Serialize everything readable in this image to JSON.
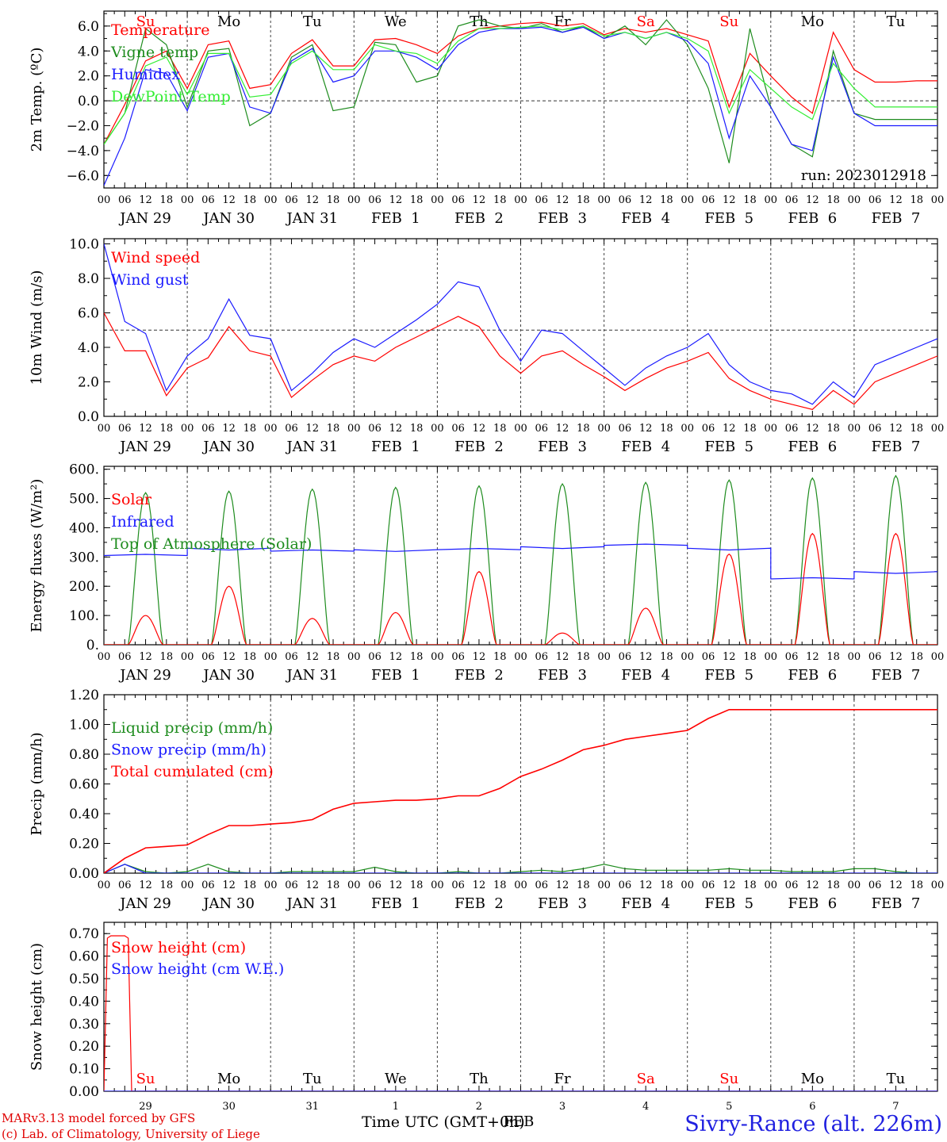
{
  "footer": {
    "model_line1": "MARv3.13 model forced by GFS",
    "model_line2": "(c) Lab. of Climatology, University of Liege",
    "xaxis_title": "Time UTC (GMT+0h)",
    "station": "Sivry-Rance (alt. 226m)",
    "month_label": "FEB"
  },
  "colors": {
    "red": "#ff0000",
    "blue": "#1a1aff",
    "green": "#1e8c1e",
    "light_green": "#33ee33"
  },
  "time_axis": {
    "hour_ticks": [
      "00",
      "06",
      "12",
      "18"
    ],
    "day_labels": [
      "JAN 29",
      "JAN 30",
      "JAN 31",
      "FEB  1",
      "FEB  2",
      "FEB  3",
      "FEB  4",
      "FEB  5",
      "FEB  6",
      "FEB  7"
    ],
    "weekdays": [
      "Su",
      "Mo",
      "Tu",
      "We",
      "Th",
      "Fr",
      "Sa",
      "Su",
      "Mo",
      "Tu"
    ],
    "weekday_red": [
      true,
      false,
      false,
      false,
      false,
      false,
      true,
      true,
      false,
      false
    ],
    "day_numbers": [
      "29",
      "30",
      "31",
      "1",
      "2",
      "3",
      "4",
      "5",
      "6",
      "7"
    ]
  },
  "chart_data": [
    {
      "type": "line",
      "ylabel": "2m Temp. (ºC)",
      "ylim": [
        -7,
        7.2
      ],
      "yticks": [
        "6.0",
        "4.0",
        "2.0",
        "0.0",
        "−2.0",
        "−4.0",
        "−6.0"
      ],
      "ytick_values": [
        6,
        4,
        2,
        0,
        -2,
        -4,
        -6
      ],
      "reference_line": 0,
      "annotation": "run: 2023012918",
      "x_hours": [
        0,
        6,
        12,
        18,
        24,
        30,
        36,
        42,
        48,
        54,
        60,
        66,
        72,
        78,
        84,
        90,
        96,
        102,
        108,
        114,
        120,
        126,
        132,
        138,
        144,
        150,
        156,
        162,
        168,
        174,
        180,
        186,
        192,
        198,
        204,
        210,
        216,
        222,
        228,
        234,
        240
      ],
      "series": [
        {
          "name": "Temperature",
          "color": "red",
          "values": [
            -3.5,
            -0.3,
            3.2,
            4.0,
            1.0,
            4.5,
            4.8,
            1.0,
            1.3,
            3.8,
            4.9,
            2.8,
            2.8,
            4.9,
            5.0,
            4.5,
            3.8,
            5.2,
            5.8,
            6.0,
            6.2,
            6.3,
            6.0,
            6.2,
            5.3,
            5.8,
            5.5,
            5.8,
            5.3,
            4.8,
            -0.5,
            3.8,
            2.0,
            0.3,
            -1.0,
            5.5,
            2.5,
            1.5,
            1.5,
            1.6,
            1.6
          ]
        },
        {
          "name": "Vigne temp",
          "color": "green",
          "values": [
            -3.5,
            -1.0,
            5.8,
            4.5,
            -0.5,
            4.0,
            4.2,
            -2.0,
            -1.0,
            3.5,
            4.5,
            -0.8,
            -0.5,
            4.7,
            4.5,
            1.5,
            2.0,
            6.0,
            6.5,
            6.0,
            5.8,
            6.2,
            5.5,
            6.0,
            5.0,
            6.0,
            4.5,
            6.5,
            4.5,
            1.0,
            -5.0,
            5.8,
            -0.5,
            -3.5,
            -4.5,
            4.0,
            -1.0,
            -1.5,
            -1.5,
            -1.5,
            -1.5
          ]
        },
        {
          "name": "Humidex",
          "color": "blue",
          "values": [
            -6.8,
            -3.0,
            2.5,
            2.2,
            -0.8,
            3.5,
            3.8,
            -0.5,
            -1.0,
            3.2,
            4.2,
            1.5,
            2.0,
            4.0,
            4.0,
            3.5,
            2.5,
            4.5,
            5.5,
            5.8,
            5.8,
            5.9,
            5.5,
            5.9,
            5.0,
            5.5,
            5.0,
            5.5,
            4.8,
            3.0,
            -3.0,
            2.0,
            -0.5,
            -3.5,
            -4.0,
            3.5,
            -1.0,
            -2.0,
            -2.0,
            -2.0,
            -2.0
          ]
        },
        {
          "name": "DewPoint Temp",
          "color": "light_green",
          "values": [
            -3.5,
            -1.0,
            2.8,
            3.5,
            0.5,
            3.8,
            3.8,
            0.3,
            0.5,
            3.0,
            4.0,
            2.5,
            2.5,
            4.5,
            4.0,
            3.8,
            3.0,
            4.8,
            5.8,
            5.8,
            5.9,
            6.0,
            5.7,
            6.0,
            5.2,
            5.5,
            5.0,
            5.5,
            5.0,
            4.0,
            -1.0,
            2.5,
            1.0,
            -0.5,
            -1.5,
            3.0,
            1.0,
            -0.5,
            -0.5,
            -0.5,
            -0.5
          ]
        }
      ]
    },
    {
      "type": "line",
      "ylabel": "10m Wind (m/s)",
      "ylim": [
        0,
        10.3
      ],
      "yticks": [
        "10.0",
        "8.0",
        "6.0",
        "4.0",
        "2.0",
        "0.0"
      ],
      "ytick_values": [
        10,
        8,
        6,
        4,
        2,
        0
      ],
      "reference_line": 5,
      "x_hours": [
        0,
        6,
        12,
        18,
        24,
        30,
        36,
        42,
        48,
        54,
        60,
        66,
        72,
        78,
        84,
        90,
        96,
        102,
        108,
        114,
        120,
        126,
        132,
        138,
        144,
        150,
        156,
        162,
        168,
        174,
        180,
        186,
        192,
        198,
        204,
        210,
        216,
        222,
        228,
        234,
        240
      ],
      "series": [
        {
          "name": "Wind speed",
          "color": "red",
          "values": [
            6.0,
            3.8,
            3.8,
            1.2,
            2.8,
            3.4,
            5.2,
            3.8,
            3.5,
            1.1,
            2.1,
            3.0,
            3.5,
            3.2,
            4.0,
            4.6,
            5.2,
            5.8,
            5.2,
            3.5,
            2.5,
            3.5,
            3.8,
            3.0,
            2.3,
            1.5,
            2.2,
            2.8,
            3.2,
            3.7,
            2.2,
            1.5,
            1.0,
            0.7,
            0.4,
            1.5,
            0.7,
            2.0,
            2.5,
            3.0,
            3.5
          ]
        },
        {
          "name": "Wind gust",
          "color": "blue",
          "values": [
            10.0,
            5.5,
            4.8,
            1.5,
            3.5,
            4.5,
            6.8,
            4.7,
            4.5,
            1.5,
            2.5,
            3.7,
            4.5,
            4.0,
            4.8,
            5.6,
            6.5,
            7.8,
            7.5,
            5.0,
            3.2,
            5.0,
            4.8,
            3.8,
            2.8,
            1.8,
            2.8,
            3.5,
            4.0,
            4.8,
            3.0,
            2.0,
            1.5,
            1.3,
            0.7,
            2.0,
            1.1,
            3.0,
            3.5,
            4.0,
            4.5
          ]
        }
      ]
    },
    {
      "type": "line",
      "ylabel": "Energy fluxes (W/m²)",
      "ylim": [
        0,
        610
      ],
      "yticks": [
        "600.",
        "500.",
        "400.",
        "300.",
        "200.",
        "100.",
        "0."
      ],
      "ytick_values": [
        600,
        500,
        400,
        300,
        200,
        100,
        0
      ],
      "series_info": [
        {
          "name": "Solar",
          "color": "red",
          "daily_peaks": [
            100,
            200,
            90,
            110,
            250,
            40,
            125,
            310,
            380,
            380
          ]
        },
        {
          "name": "Infrared",
          "color": "blue",
          "daily_levels": [
            305,
            330,
            320,
            325,
            325,
            335,
            340,
            330,
            225,
            250
          ]
        },
        {
          "name": "Top of Atmosphere (Solar)",
          "color": "green",
          "daily_peaks": [
            520,
            525,
            532,
            538,
            543,
            550,
            555,
            563,
            570,
            578
          ]
        }
      ]
    },
    {
      "type": "line",
      "ylabel": "Precip (mm/h)",
      "ylim": [
        0,
        1.2
      ],
      "yticks": [
        "1.20",
        "1.00",
        "0.80",
        "0.60",
        "0.40",
        "0.20",
        "0.00"
      ],
      "ytick_values": [
        1.2,
        1.0,
        0.8,
        0.6,
        0.4,
        0.2,
        0
      ],
      "x_hours": [
        0,
        6,
        12,
        18,
        24,
        30,
        36,
        42,
        48,
        54,
        60,
        66,
        72,
        78,
        84,
        90,
        96,
        102,
        108,
        114,
        120,
        126,
        132,
        138,
        144,
        150,
        156,
        162,
        168,
        174,
        180,
        186,
        192,
        198,
        204,
        210,
        216,
        222,
        228,
        234,
        240
      ],
      "series": [
        {
          "name": "Liquid precip (mm/h)",
          "color": "green",
          "values": [
            0,
            0.06,
            0.01,
            0,
            0.01,
            0.06,
            0.01,
            0,
            0,
            0.01,
            0.01,
            0.01,
            0.01,
            0.04,
            0.01,
            0,
            0,
            0.01,
            0,
            0,
            0.01,
            0.02,
            0.01,
            0.03,
            0.06,
            0.03,
            0.02,
            0.02,
            0.02,
            0.02,
            0.03,
            0.02,
            0.02,
            0.01,
            0.01,
            0.01,
            0.03,
            0.03,
            0.01,
            0,
            0
          ]
        },
        {
          "name": "Snow precip (mm/h)",
          "color": "blue",
          "values": [
            0,
            0.06,
            0,
            0,
            0,
            0,
            0,
            0,
            0,
            0,
            0,
            0,
            0,
            0,
            0,
            0,
            0,
            0,
            0,
            0,
            0,
            0,
            0,
            0,
            0,
            0,
            0,
            0,
            0,
            0,
            0,
            0,
            0,
            0,
            0,
            0,
            0,
            0,
            0,
            0,
            0
          ]
        },
        {
          "name": "Total cumulated (cm)",
          "color": "red",
          "values": [
            0,
            0.1,
            0.17,
            0.18,
            0.19,
            0.26,
            0.32,
            0.32,
            0.33,
            0.34,
            0.36,
            0.43,
            0.47,
            0.48,
            0.49,
            0.49,
            0.5,
            0.52,
            0.52,
            0.57,
            0.65,
            0.7,
            0.76,
            0.83,
            0.86,
            0.9,
            0.92,
            0.94,
            0.96,
            1.04,
            1.1,
            1.1,
            1.1,
            1.1,
            1.1,
            1.1,
            1.1,
            1.1,
            1.1,
            1.1,
            1.1
          ]
        }
      ]
    },
    {
      "type": "line",
      "ylabel": "Snow height (cm)",
      "ylim": [
        0,
        0.75
      ],
      "yticks": [
        "0.70",
        "0.60",
        "0.50",
        "0.40",
        "0.30",
        "0.20",
        "0.10",
        "0.00"
      ],
      "ytick_values": [
        0.7,
        0.6,
        0.5,
        0.4,
        0.3,
        0.2,
        0.1,
        0
      ],
      "series": [
        {
          "name": "Snow height (cm)",
          "color": "red",
          "x": [
            0,
            1,
            2,
            6,
            7,
            8,
            240
          ],
          "values": [
            0,
            0.68,
            0.69,
            0.69,
            0.68,
            0,
            0
          ]
        },
        {
          "name": "Snow height (cm W.E.)",
          "color": "blue",
          "x": [
            0,
            240
          ],
          "values": [
            0,
            0
          ]
        }
      ]
    }
  ]
}
